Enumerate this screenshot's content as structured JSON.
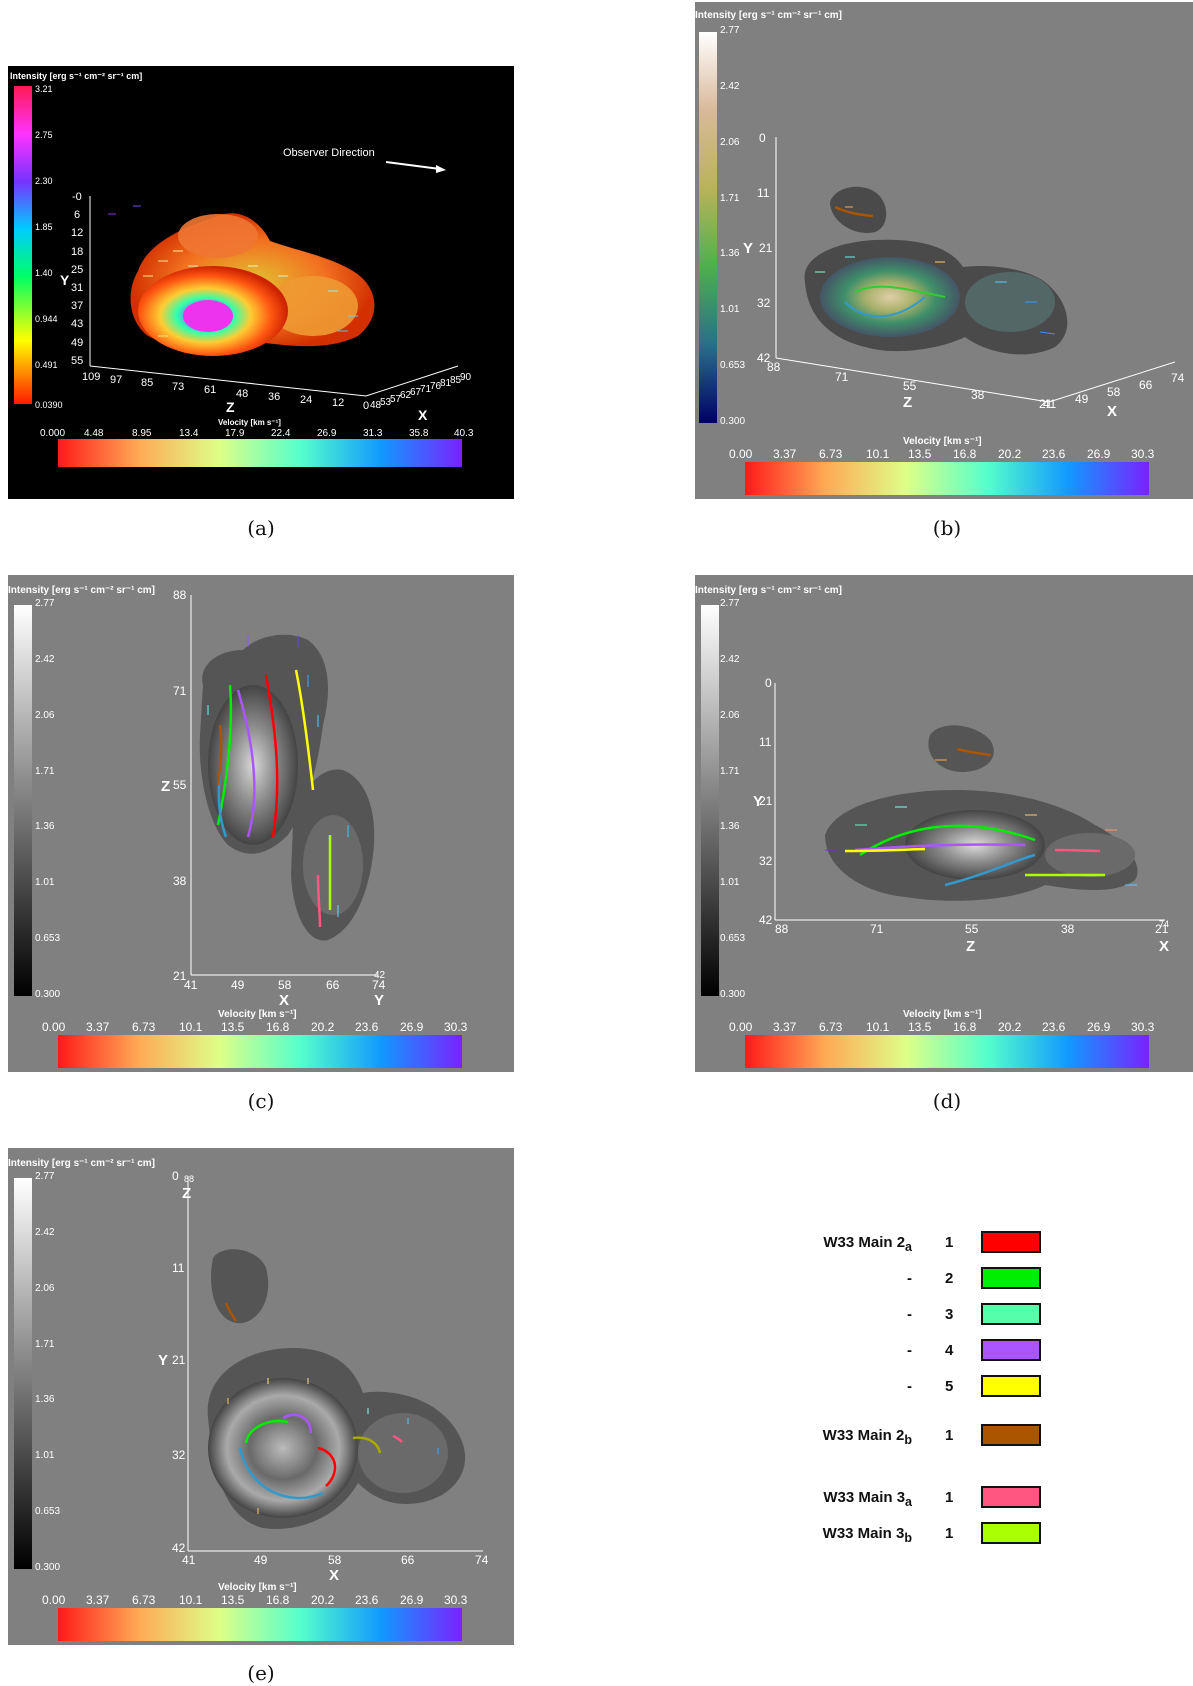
{
  "panels": [
    {
      "id": "a",
      "caption": "(a)",
      "background": "#000000",
      "text_color": "#ffffff",
      "intensity_label": "Intensity [erg s⁻¹ cm⁻² sr⁻¹ cm]",
      "intensity_ticks": [
        "3.21",
        "2.75",
        "2.30",
        "1.85",
        "1.40",
        "0.944",
        "0.491",
        "0.0390"
      ],
      "intensity_colormap": "rainbow-reversed",
      "velocity_label": "Velocity [km s⁻¹]",
      "velocity_ticks": [
        "0.000",
        "4.48",
        "8.95",
        "13.4",
        "17.9",
        "22.4",
        "26.9",
        "31.3",
        "35.8",
        "40.3"
      ],
      "annotation": "Observer Direction",
      "axis_y_label": "Y",
      "axis_y_ticks": [
        "-0",
        "6",
        "12",
        "18",
        "25",
        "31",
        "37",
        "43",
        "49",
        "55"
      ],
      "axis_z_label": "Z",
      "axis_z_ticks": [
        "109",
        "97",
        "85",
        "73",
        "61",
        "48",
        "36",
        "24",
        "12",
        "0"
      ],
      "axis_x_label": "X",
      "axis_x_ticks": [
        "48",
        "53",
        "57",
        "62",
        "67",
        "71",
        "76",
        "81",
        "85",
        "90"
      ]
    },
    {
      "id": "b",
      "caption": "(b)",
      "background": "#808080",
      "text_color": "#ffffff",
      "intensity_label": "Intensity [erg s⁻¹ cm⁻² sr⁻¹ cm]",
      "intensity_ticks": [
        "2.77",
        "2.42",
        "2.06",
        "1.71",
        "1.36",
        "1.01",
        "0.653",
        "0.300"
      ],
      "intensity_colormap": "earth",
      "velocity_label": "Velocity [km s⁻¹]",
      "velocity_ticks": [
        "0.00",
        "3.37",
        "6.73",
        "10.1",
        "13.5",
        "16.8",
        "20.2",
        "23.6",
        "26.9",
        "30.3"
      ],
      "axis_y_label": "Y",
      "axis_y_ticks": [
        "0",
        "11",
        "21",
        "32",
        "42"
      ],
      "axis_z_label": "Z",
      "axis_z_ticks": [
        "88",
        "71",
        "55",
        "38",
        "21"
      ],
      "axis_x_label": "X",
      "axis_x_ticks": [
        "41",
        "49",
        "58",
        "66",
        "74"
      ]
    },
    {
      "id": "c",
      "caption": "(c)",
      "background": "#808080",
      "text_color": "#ffffff",
      "intensity_label": "Intensity [erg s⁻¹ cm⁻² sr⁻¹ cm]",
      "intensity_ticks": [
        "2.77",
        "2.42",
        "2.06",
        "1.71",
        "1.36",
        "1.01",
        "0.653",
        "0.300"
      ],
      "intensity_colormap": "gray",
      "velocity_label": "Velocity [km s⁻¹]",
      "velocity_ticks": [
        "0.00",
        "3.37",
        "6.73",
        "10.1",
        "13.5",
        "16.8",
        "20.2",
        "23.6",
        "26.9",
        "30.3"
      ],
      "axis_z_label": "Z",
      "axis_z_ticks": [
        "88",
        "71",
        "55",
        "38",
        "21"
      ],
      "axis_x_label": "X",
      "axis_x_ticks": [
        "41",
        "49",
        "58",
        "66",
        "74"
      ],
      "axis_y_label": "Y",
      "axis_y_ticks": [
        "42"
      ]
    },
    {
      "id": "d",
      "caption": "(d)",
      "background": "#808080",
      "text_color": "#ffffff",
      "intensity_label": "Intensity [erg s⁻¹ cm⁻² sr⁻¹ cm]",
      "intensity_ticks": [
        "2.77",
        "2.42",
        "2.06",
        "1.71",
        "1.36",
        "1.01",
        "0.653",
        "0.300"
      ],
      "intensity_colormap": "gray",
      "velocity_label": "Velocity [km s⁻¹]",
      "velocity_ticks": [
        "0.00",
        "3.37",
        "6.73",
        "10.1",
        "13.5",
        "16.8",
        "20.2",
        "23.6",
        "26.9",
        "30.3"
      ],
      "axis_y_label": "Y",
      "axis_y_ticks": [
        "0",
        "11",
        "21",
        "32",
        "42"
      ],
      "axis_z_label": "Z",
      "axis_z_ticks": [
        "88",
        "71",
        "55",
        "38",
        "21"
      ],
      "axis_x_label": "X",
      "axis_x_ticks": [
        "74"
      ]
    },
    {
      "id": "e",
      "caption": "(e)",
      "background": "#808080",
      "text_color": "#ffffff",
      "intensity_label": "Intensity [erg s⁻¹ cm⁻² sr⁻¹ cm]",
      "intensity_ticks": [
        "2.77",
        "2.42",
        "2.06",
        "1.71",
        "1.36",
        "1.01",
        "0.653",
        "0.300"
      ],
      "intensity_colormap": "gray",
      "velocity_label": "Velocity [km s⁻¹]",
      "velocity_ticks": [
        "0.00",
        "3.37",
        "6.73",
        "10.1",
        "13.5",
        "16.8",
        "20.2",
        "23.6",
        "26.9",
        "30.3"
      ],
      "axis_y_label": "Y",
      "axis_y_ticks": [
        "0",
        "11",
        "21",
        "32",
        "42"
      ],
      "axis_x_label": "X",
      "axis_x_ticks": [
        "41",
        "49",
        "58",
        "66",
        "74"
      ],
      "axis_z_label": "Z",
      "axis_z_ticks": [
        "88"
      ]
    }
  ],
  "legend": [
    {
      "name": "W33 Main 2",
      "sub": "a",
      "num": "1",
      "color": "#ff0000"
    },
    {
      "name": "-",
      "sub": "",
      "num": "2",
      "color": "#00ee00"
    },
    {
      "name": "-",
      "sub": "",
      "num": "3",
      "color": "#55ffaa"
    },
    {
      "name": "-",
      "sub": "",
      "num": "4",
      "color": "#aa55ff"
    },
    {
      "name": "-",
      "sub": "",
      "num": "5",
      "color": "#ffff00"
    },
    {
      "name": "W33 Main 2",
      "sub": "b",
      "num": "1",
      "color": "#aa5500"
    },
    {
      "name": "W33 Main 3",
      "sub": "a",
      "num": "1",
      "color": "#ff5580"
    },
    {
      "name": "W33 Main 3",
      "sub": "b",
      "num": "1",
      "color": "#aaff00"
    }
  ]
}
